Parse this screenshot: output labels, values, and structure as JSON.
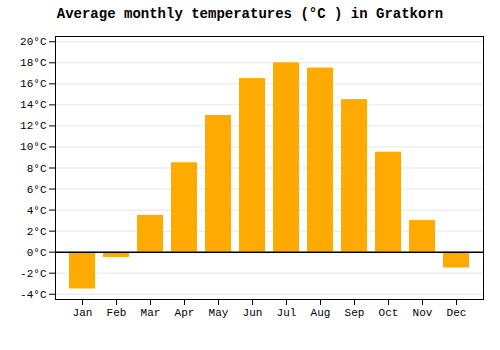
{
  "chart_data": {
    "type": "bar",
    "title": "Average monthly temperatures (°C ) in Gratkorn",
    "categories": [
      "Jan",
      "Feb",
      "Mar",
      "Apr",
      "May",
      "Jun",
      "Jul",
      "Aug",
      "Sep",
      "Oct",
      "Nov",
      "Dec"
    ],
    "values": [
      -3.5,
      -0.5,
      3.5,
      8.5,
      13.0,
      16.5,
      18.0,
      17.5,
      14.5,
      9.5,
      3.0,
      -1.5
    ],
    "color": "#FFAA00",
    "ylim": [
      -4.5,
      20.5
    ],
    "yticks": [
      {
        "value": -4,
        "label": "-4°C"
      },
      {
        "value": -2,
        "label": "-2°C"
      },
      {
        "value": 0,
        "label": "0°C"
      },
      {
        "value": 2,
        "label": "2°C"
      },
      {
        "value": 4,
        "label": "4°C"
      },
      {
        "value": 6,
        "label": "6°C"
      },
      {
        "value": 8,
        "label": "8°C"
      },
      {
        "value": 10,
        "label": "10°C"
      },
      {
        "value": 12,
        "label": "12°C"
      },
      {
        "value": 14,
        "label": "14°C"
      },
      {
        "value": 16,
        "label": "16°C"
      },
      {
        "value": 18,
        "label": "18°C"
      },
      {
        "value": 20,
        "label": "20°C"
      }
    ],
    "grid": true
  }
}
